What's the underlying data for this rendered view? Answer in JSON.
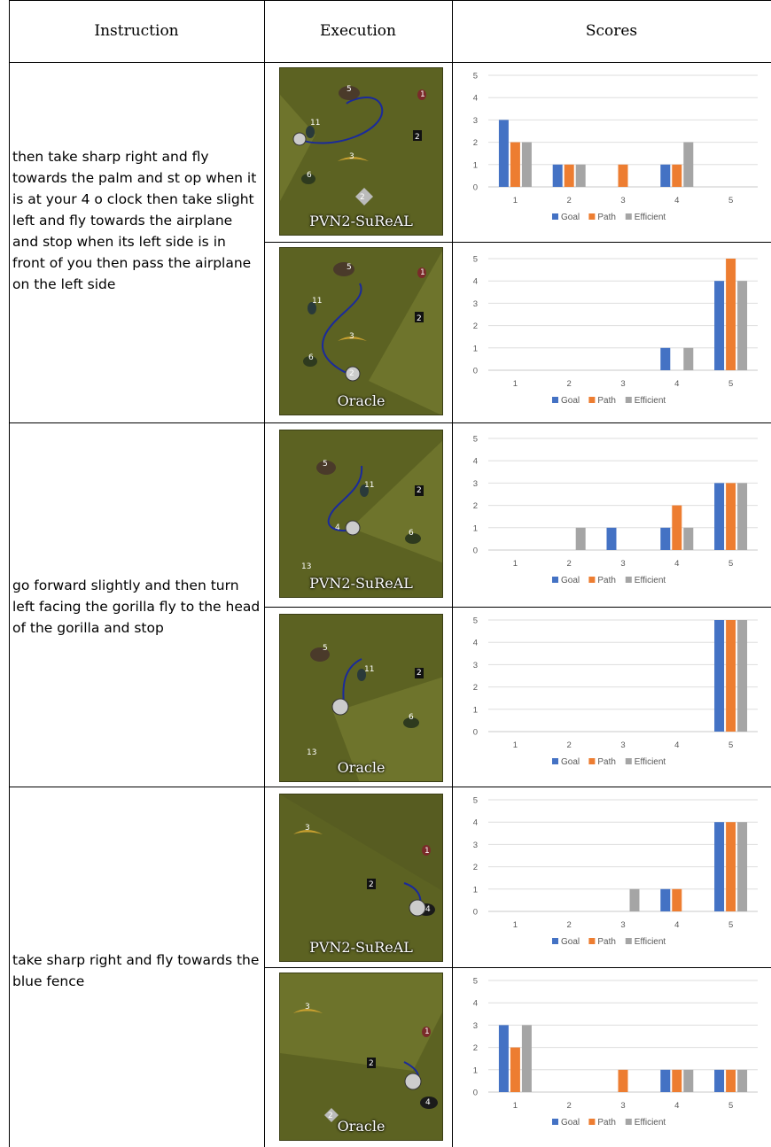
{
  "header": {
    "instruction": "Instruction",
    "execution": "Execution",
    "scores": "Scores"
  },
  "rows": [
    {
      "instruction": "then take sharp right and fly towards the palm and st op when it is at your 4 o clock then take slight left and fly towards the airplane and stop when its left side is in front of you   then pass the airplane on the left side"
    },
    {
      "instruction": "go forward slightly and then turn left facing the gorilla fly to the head of the gorilla and stop"
    },
    {
      "instruction": "take sharp right and fly towards the blue fence"
    }
  ],
  "maps": [
    {
      "label": "PVN2-SuReAL",
      "landmarks": [
        "5",
        "1",
        "11",
        "2",
        "3",
        "6",
        "2"
      ]
    },
    {
      "label": "Oracle",
      "landmarks": [
        "5",
        "1",
        "11",
        "2",
        "3",
        "6",
        "2"
      ]
    },
    {
      "label": "PVN2-SuReAL",
      "landmarks": [
        "5",
        "11",
        "2",
        "4",
        "6",
        "13"
      ]
    },
    {
      "label": "Oracle",
      "landmarks": [
        "5",
        "11",
        "2",
        "6",
        "13"
      ]
    },
    {
      "label": "PVN2-SuReAL",
      "landmarks": [
        "3",
        "1",
        "2",
        "4"
      ]
    },
    {
      "label": "Oracle",
      "landmarks": [
        "3",
        "1",
        "2",
        "4",
        "2"
      ]
    }
  ],
  "colors": {
    "goal": "#4472c4",
    "path": "#ed7d31",
    "efficient": "#a5a5a5",
    "map_bg": "#5c6222",
    "trajectory": "#1a2a9c"
  },
  "chart_data": [
    {
      "type": "bar",
      "categories": [
        "1",
        "2",
        "3",
        "4",
        "5"
      ],
      "ylim": [
        0,
        5
      ],
      "yticks": [
        "0",
        "1",
        "2",
        "3",
        "4",
        "5"
      ],
      "grid": true,
      "legend": "bottom",
      "series": [
        {
          "name": "Goal",
          "values": [
            3,
            1,
            0,
            1,
            0
          ]
        },
        {
          "name": "Path",
          "values": [
            2,
            1,
            1,
            1,
            0
          ]
        },
        {
          "name": "Efficient",
          "values": [
            2,
            1,
            0,
            2,
            0
          ]
        }
      ]
    },
    {
      "type": "bar",
      "categories": [
        "1",
        "2",
        "3",
        "4",
        "5"
      ],
      "ylim": [
        0,
        5
      ],
      "yticks": [
        "0",
        "1",
        "2",
        "3",
        "4",
        "5"
      ],
      "grid": true,
      "legend": "bottom",
      "series": [
        {
          "name": "Goal",
          "values": [
            0,
            0,
            0,
            1,
            4
          ]
        },
        {
          "name": "Path",
          "values": [
            0,
            0,
            0,
            0,
            5
          ]
        },
        {
          "name": "Efficient",
          "values": [
            0,
            0,
            0,
            1,
            4
          ]
        }
      ]
    },
    {
      "type": "bar",
      "categories": [
        "1",
        "2",
        "3",
        "4",
        "5"
      ],
      "ylim": [
        0,
        5
      ],
      "yticks": [
        "0",
        "1",
        "2",
        "3",
        "4",
        "5"
      ],
      "grid": true,
      "legend": "bottom",
      "series": [
        {
          "name": "Goal",
          "values": [
            0,
            0,
            1,
            1,
            3
          ]
        },
        {
          "name": "Path",
          "values": [
            0,
            0,
            0,
            2,
            3
          ]
        },
        {
          "name": "Efficient",
          "values": [
            0,
            1,
            0,
            1,
            3
          ]
        }
      ]
    },
    {
      "type": "bar",
      "categories": [
        "1",
        "2",
        "3",
        "4",
        "5"
      ],
      "ylim": [
        0,
        5
      ],
      "yticks": [
        "0",
        "1",
        "2",
        "3",
        "4",
        "5"
      ],
      "grid": true,
      "legend": "bottom",
      "series": [
        {
          "name": "Goal",
          "values": [
            0,
            0,
            0,
            0,
            5
          ]
        },
        {
          "name": "Path",
          "values": [
            0,
            0,
            0,
            0,
            5
          ]
        },
        {
          "name": "Efficient",
          "values": [
            0,
            0,
            0,
            0,
            5
          ]
        }
      ]
    },
    {
      "type": "bar",
      "categories": [
        "1",
        "2",
        "3",
        "4",
        "5"
      ],
      "ylim": [
        0,
        5
      ],
      "yticks": [
        "0",
        "1",
        "2",
        "3",
        "4",
        "5"
      ],
      "grid": true,
      "legend": "bottom",
      "series": [
        {
          "name": "Goal",
          "values": [
            0,
            0,
            0,
            1,
            4
          ]
        },
        {
          "name": "Path",
          "values": [
            0,
            0,
            0,
            1,
            4
          ]
        },
        {
          "name": "Efficient",
          "values": [
            0,
            0,
            1,
            0,
            4
          ]
        }
      ]
    },
    {
      "type": "bar",
      "categories": [
        "1",
        "2",
        "3",
        "4",
        "5"
      ],
      "ylim": [
        0,
        5
      ],
      "yticks": [
        "0",
        "1",
        "2",
        "3",
        "4",
        "5"
      ],
      "grid": true,
      "legend": "bottom",
      "series": [
        {
          "name": "Goal",
          "values": [
            3,
            0,
            0,
            1,
            1
          ]
        },
        {
          "name": "Path",
          "values": [
            2,
            0,
            1,
            1,
            1
          ]
        },
        {
          "name": "Efficient",
          "values": [
            3,
            0,
            0,
            1,
            1
          ]
        }
      ]
    }
  ]
}
